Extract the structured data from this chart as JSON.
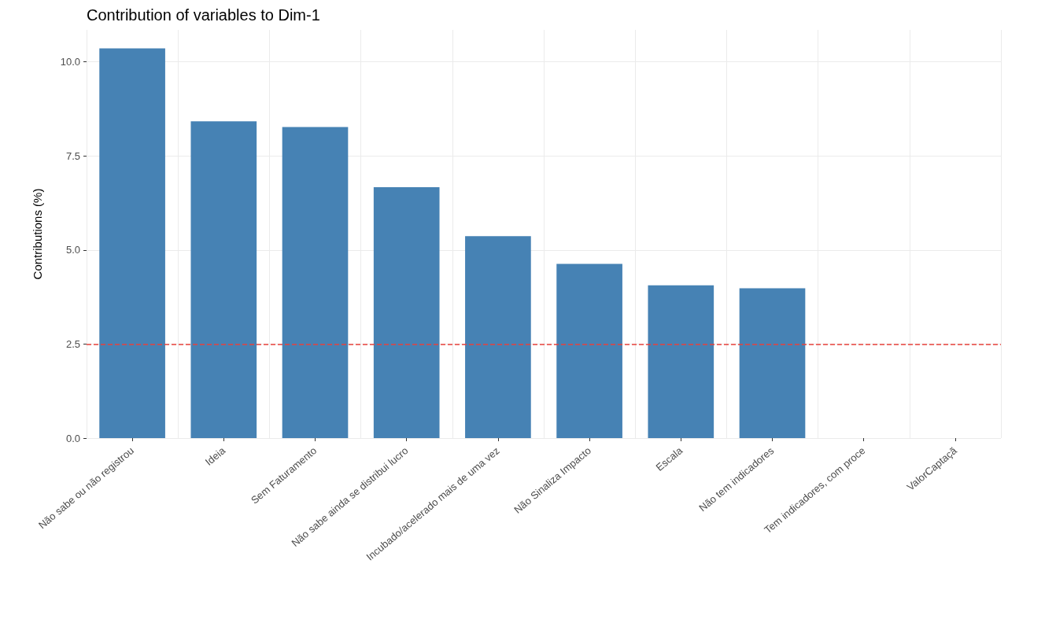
{
  "chart_data": {
    "type": "bar",
    "title": "Contribution of variables to Dim-1",
    "ylabel": "Contributions (%)",
    "categories": [
      "Não sabe ou não registrou",
      "Ideia",
      "Sem Faturamento",
      "Não sabe ainda se distribui lucro",
      "Incubado/acelerado mais de uma vez",
      "Não Sinaliza Impacto",
      "Escala",
      "Não tem indicadores",
      "Tem indicadores, com proce",
      "ValorCaptaçã"
    ],
    "values": [
      10.36,
      8.42,
      8.27,
      6.67,
      5.37,
      4.63,
      4.06,
      3.98,
      null,
      null
    ],
    "color": "#4682b4",
    "ylim": [
      0,
      10.85
    ],
    "yticks": [
      {
        "value": 0,
        "label": "0.0"
      },
      {
        "value": 2.5,
        "label": "2.5"
      },
      {
        "value": 5,
        "label": "5.0"
      },
      {
        "value": 7.5,
        "label": "7.5"
      },
      {
        "value": 10,
        "label": "10.0"
      }
    ],
    "ref_lines": [
      {
        "axis": "y",
        "value": 2.5,
        "color": "#e8413c",
        "line_style": "dashed"
      }
    ],
    "grid": true
  }
}
